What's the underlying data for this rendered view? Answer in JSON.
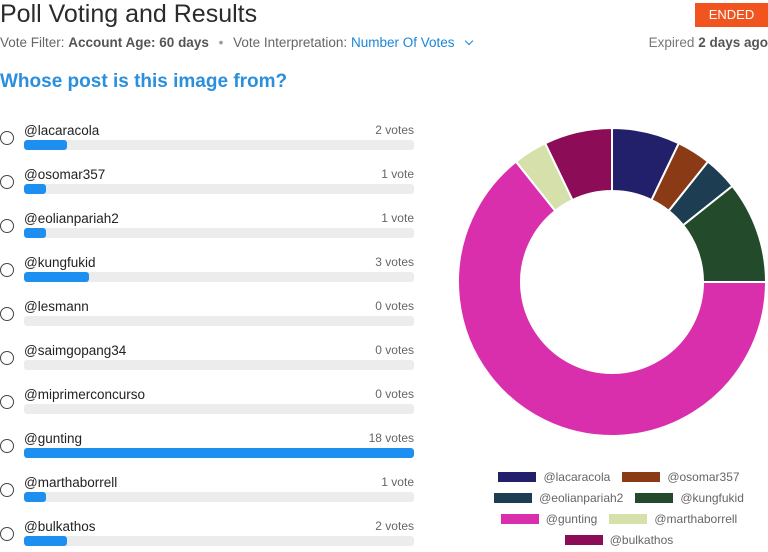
{
  "header": {
    "title": "Poll Voting and Results",
    "status_badge": "ENDED",
    "filter_label": "Vote Filter:",
    "filter_value": "Account Age: 60 days",
    "separator": "•",
    "interpretation_label": "Vote Interpretation:",
    "interpretation_value": "Number Of Votes",
    "expired_label": "Expired",
    "expired_value": "2 days ago"
  },
  "question": "Whose post is this image from?",
  "options": [
    {
      "label": "@lacaracola",
      "votes_text": "2 votes",
      "votes": 2
    },
    {
      "label": "@osomar357",
      "votes_text": "1 vote",
      "votes": 1
    },
    {
      "label": "@eolianpariah2",
      "votes_text": "1 vote",
      "votes": 1
    },
    {
      "label": "@kungfukid",
      "votes_text": "3 votes",
      "votes": 3
    },
    {
      "label": "@lesmann",
      "votes_text": "0 votes",
      "votes": 0
    },
    {
      "label": "@saimgopang34",
      "votes_text": "0 votes",
      "votes": 0
    },
    {
      "label": "@miprimerconcurso",
      "votes_text": "0 votes",
      "votes": 0
    },
    {
      "label": "@gunting",
      "votes_text": "18 votes",
      "votes": 18
    },
    {
      "label": "@marthaborrell",
      "votes_text": "1 vote",
      "votes": 1
    },
    {
      "label": "@bulkathos",
      "votes_text": "2 votes",
      "votes": 2
    }
  ],
  "colors": {
    "accent": "#1d8ff0",
    "badge": "#f1541f",
    "question": "#2a8fdc"
  },
  "chart_data": {
    "type": "pie",
    "style": "donut",
    "legend_position": "bottom",
    "categories": [
      "@lacaracola",
      "@osomar357",
      "@eolianpariah2",
      "@kungfukid",
      "@gunting",
      "@marthaborrell",
      "@bulkathos"
    ],
    "values": [
      2,
      1,
      1,
      3,
      18,
      1,
      2
    ],
    "colors": [
      "#22206b",
      "#8a3b15",
      "#1c3d52",
      "#234a2b",
      "#d92fad",
      "#d6e0ab",
      "#8c0c57"
    ]
  }
}
